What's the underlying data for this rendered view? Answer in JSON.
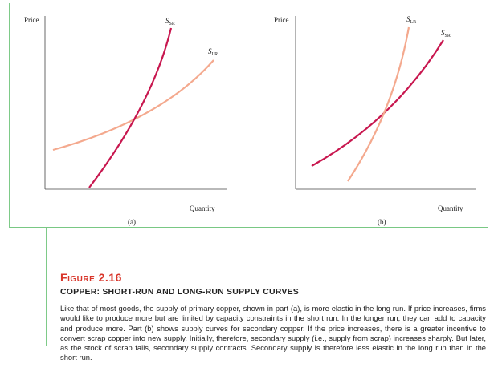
{
  "colors": {
    "short_run_curve": "#c8174f",
    "long_run_curve": "#f4a98e",
    "frame_line": "#29a83a",
    "figure_label": "#d8352a"
  },
  "panel_a": {
    "y_axis_label": "Price",
    "x_axis_label": "Quantity",
    "panel_label": "(a)",
    "curve_sr_label": "S",
    "curve_sr_sub": "SR",
    "curve_lr_label": "S",
    "curve_lr_sub": "LR"
  },
  "panel_b": {
    "y_axis_label": "Price",
    "x_axis_label": "Quantity",
    "panel_label": "(b)",
    "curve_lr_label": "S",
    "curve_lr_sub": "LR",
    "curve_sr_label": "S",
    "curve_sr_sub": "SR"
  },
  "caption": {
    "figure_word": "IGURE",
    "figure_first_letter": "F",
    "figure_number": "2.16",
    "title": "COPPER: SHORT-RUN AND LONG-RUN SUPPLY CURVES",
    "body": "Like that of most goods, the supply of primary copper, shown in part (a), is more elastic in the long run. If price increases, firms would like to produce more but are limited by capacity constraints in the short run. In the longer run, they can add to capacity and produce more. Part (b) shows supply curves for secondary copper. If the price increases, there is a greater incentive to convert scrap copper into new supply. Initially, therefore, secondary supply (i.e., supply from scrap) increases sharply. But later, as the stock of scrap falls, secondary supply contracts. Secondary supply is therefore less elastic in the long run than in the short run."
  }
}
